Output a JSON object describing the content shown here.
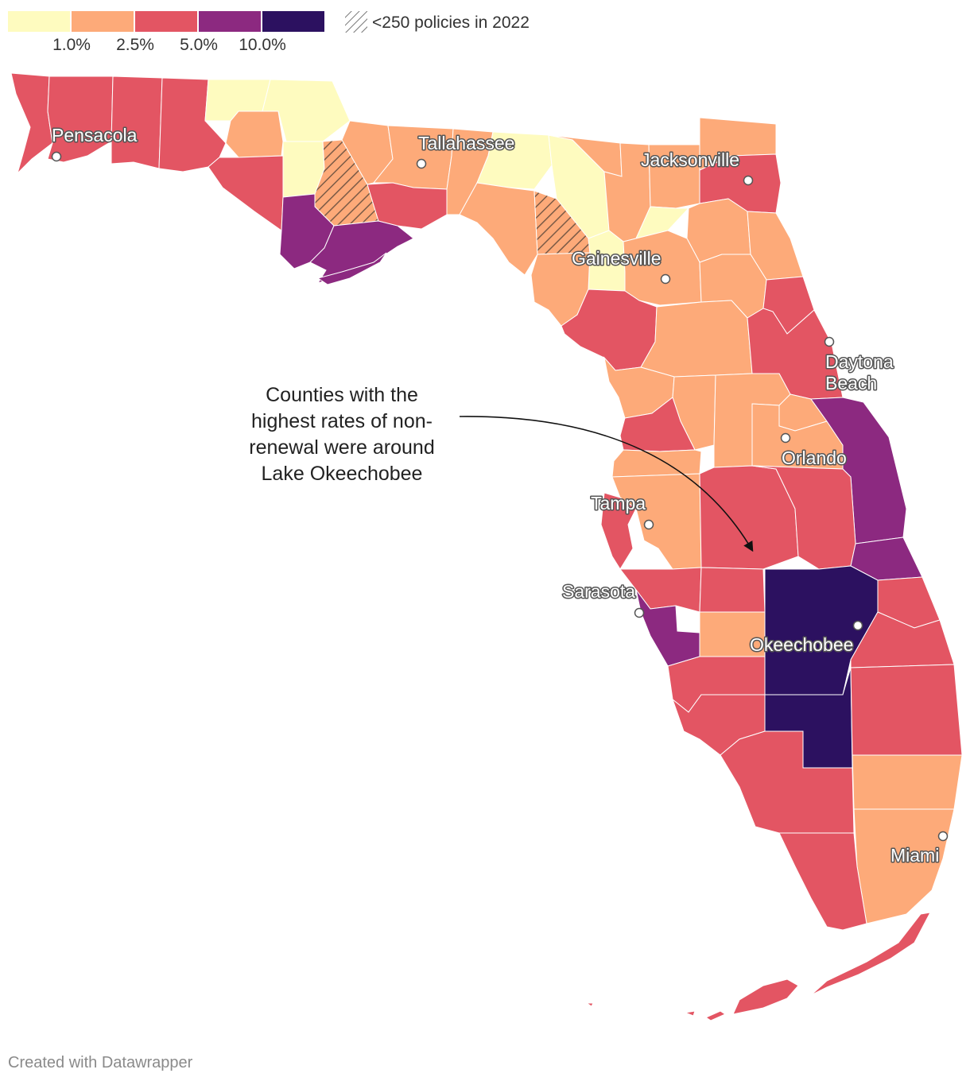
{
  "colors": {
    "bin_1": "#fefbbf",
    "bin_2": "#fdaa79",
    "bin_3": "#e35563",
    "bin_4": "#8c2980",
    "bin_5": "#2c1160",
    "hatch": "#7a5a46",
    "marker_stroke": "#555555"
  },
  "legend": {
    "thresholds": [
      "1.0%",
      "2.5%",
      "5.0%",
      "10.0%"
    ],
    "hatch_label": "<250 policies in 2022"
  },
  "cities": [
    {
      "name": "Pensacola",
      "label": "Pensacola"
    },
    {
      "name": "Tallahassee",
      "label": "Tallahassee"
    },
    {
      "name": "Jacksonville",
      "label": "Jacksonville"
    },
    {
      "name": "Gainesville",
      "label": "Gainesville"
    },
    {
      "name": "Daytona Beach",
      "label_line1": "Daytona",
      "label_line2": "Beach"
    },
    {
      "name": "Orlando",
      "label": "Orlando"
    },
    {
      "name": "Tampa",
      "label": "Tampa"
    },
    {
      "name": "Sarasota",
      "label": "Sarasota"
    },
    {
      "name": "Okeechobee",
      "label": "Okeechobee"
    },
    {
      "name": "Miami",
      "label": "Miami"
    }
  ],
  "annotation": {
    "line1": "Counties with the",
    "line2": "highest rates of non-",
    "line3": "renewal were around",
    "line4": "Lake Okeechobee"
  },
  "credit": "Created with Datawrapper"
}
